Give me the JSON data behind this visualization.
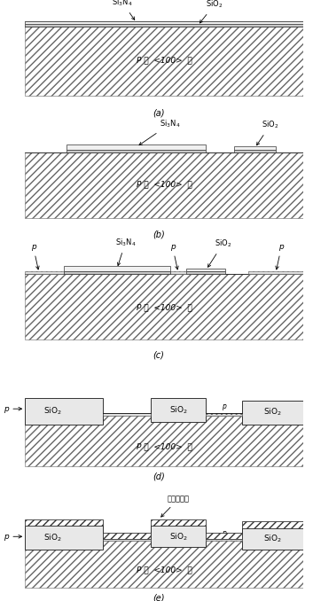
{
  "fig_width": 3.53,
  "fig_height": 6.78,
  "dpi": 100,
  "bg_color": "#ffffff",
  "substrate_label": "P 型 ， <100>  硅",
  "si3n4": "Si$_3$N$_4$",
  "sio2": "SiO$_2$",
  "poly_label": "淀积多晶硅",
  "panel_labels": [
    "(a)",
    "(b)",
    "(c)",
    "(d)",
    "(e)"
  ],
  "hatch_si": "////",
  "hatch_poly": "////"
}
